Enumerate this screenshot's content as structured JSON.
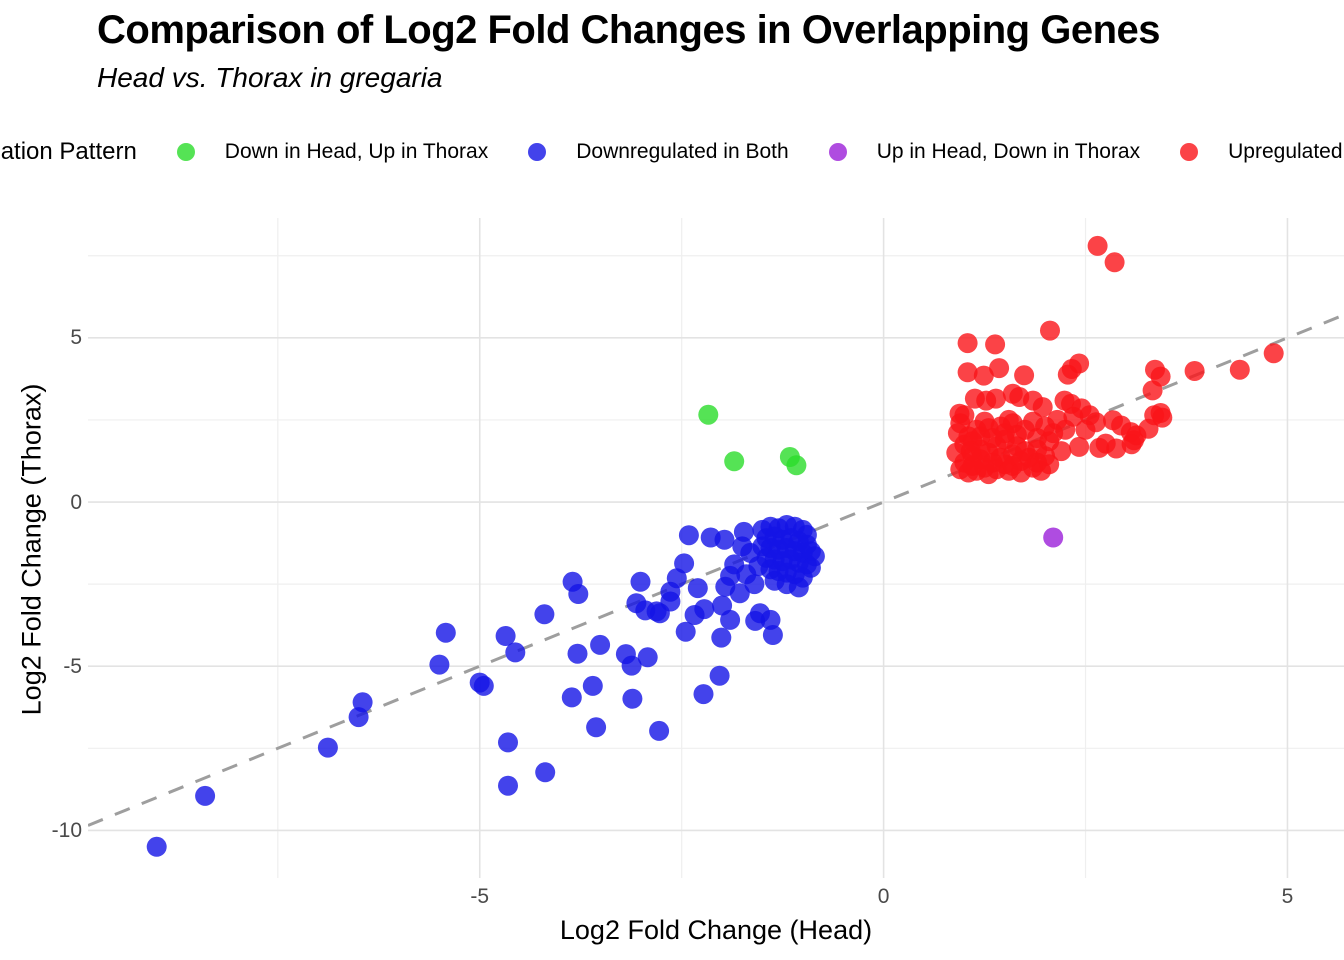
{
  "title": "Comparison of Log2 Fold Changes in Overlapping Genes",
  "subtitle": "Head vs. Thorax in gregaria",
  "legend": {
    "title": "Regulation Pattern",
    "items": [
      {
        "label": "Down in Head, Up in Thorax",
        "color": "#55E355"
      },
      {
        "label": "Downregulated in Both",
        "color": "#4343EB"
      },
      {
        "label": "Up in Head, Down in Thorax",
        "color": "#AF4CE0"
      },
      {
        "label": "Upregulated in Both",
        "color": "#FB4347"
      }
    ]
  },
  "chart_data": {
    "type": "scatter",
    "title": "Comparison of Log2 Fold Changes in Overlapping Genes",
    "subtitle": "Head vs. Thorax in gregaria",
    "xlabel": "Log2 Fold Change (Head)",
    "ylabel": "Log2 Fold Change (Thorax)",
    "xlim": [
      -9.85,
      5.7
    ],
    "ylim": [
      -11.45,
      8.65
    ],
    "x_ticks": [
      -5,
      0,
      5
    ],
    "y_ticks": [
      5,
      0,
      -5,
      -10
    ],
    "x_minor_ticks": [
      -7.5,
      -2.5,
      2.5
    ],
    "y_minor_ticks": [
      7.5,
      2.5,
      -2.5,
      -7.5
    ],
    "grid": true,
    "legend_position": "top",
    "identity_line": {
      "type": "y=x",
      "style": "dashed",
      "color": "#9E9E9E"
    },
    "point_radius": 10,
    "point_opacity": 0.8,
    "series": [
      {
        "name": "Down in Head, Up in Thorax",
        "color": "#2ADC2A",
        "points": [
          [
            -2.17,
            2.66
          ],
          [
            -1.85,
            1.24
          ],
          [
            -1.16,
            1.37
          ],
          [
            -1.08,
            1.12
          ]
        ]
      },
      {
        "name": "Downregulated in Both",
        "color": "#1414E6",
        "points": [
          [
            -9.0,
            -10.5
          ],
          [
            -8.4,
            -8.95
          ],
          [
            -6.88,
            -7.48
          ],
          [
            -6.5,
            -6.55
          ],
          [
            -6.45,
            -6.1
          ],
          [
            -5.5,
            -4.95
          ],
          [
            -5.42,
            -3.98
          ],
          [
            -5.0,
            -5.5
          ],
          [
            -4.95,
            -5.6
          ],
          [
            -4.68,
            -4.08
          ],
          [
            -4.56,
            -4.58
          ],
          [
            -4.65,
            -7.32
          ],
          [
            -4.65,
            -8.64
          ],
          [
            -4.19,
            -8.23
          ],
          [
            -4.2,
            -3.42
          ],
          [
            -3.85,
            -2.43
          ],
          [
            -3.78,
            -2.8
          ],
          [
            -3.79,
            -4.62
          ],
          [
            -3.6,
            -5.6
          ],
          [
            -3.86,
            -5.95
          ],
          [
            -3.56,
            -6.86
          ],
          [
            -2.78,
            -6.97
          ],
          [
            -3.51,
            -4.35
          ],
          [
            -3.19,
            -4.63
          ],
          [
            -3.12,
            -4.98
          ],
          [
            -2.92,
            -4.73
          ],
          [
            -3.11,
            -5.99
          ],
          [
            -2.03,
            -5.29
          ],
          [
            -2.23,
            -5.85
          ],
          [
            -2.01,
            -4.13
          ],
          [
            -3.01,
            -2.43
          ],
          [
            -3.06,
            -3.08
          ],
          [
            -2.95,
            -3.3
          ],
          [
            -2.77,
            -3.39
          ],
          [
            -2.64,
            -3.03
          ],
          [
            -2.81,
            -3.33
          ],
          [
            -2.45,
            -3.95
          ],
          [
            -2.34,
            -3.44
          ],
          [
            -2.22,
            -3.26
          ],
          [
            -1.9,
            -3.59
          ],
          [
            -1.59,
            -3.62
          ],
          [
            -1.4,
            -3.59
          ],
          [
            -1.37,
            -4.05
          ],
          [
            -2.41,
            -1.01
          ],
          [
            -2.14,
            -1.08
          ],
          [
            -1.97,
            -1.15
          ],
          [
            -1.73,
            -0.91
          ],
          [
            -2.47,
            -1.87
          ],
          [
            -2.64,
            -2.73
          ],
          [
            -2.56,
            -2.32
          ],
          [
            -2.3,
            -2.62
          ],
          [
            -1.96,
            -2.58
          ],
          [
            -1.78,
            -2.78
          ],
          [
            -2.0,
            -3.15
          ],
          [
            -1.53,
            -3.39
          ],
          [
            -1.5,
            -0.85
          ],
          [
            -1.4,
            -0.75
          ],
          [
            -1.3,
            -0.8
          ],
          [
            -1.2,
            -0.7
          ],
          [
            -1.1,
            -0.75
          ],
          [
            -1.0,
            -0.85
          ],
          [
            -0.95,
            -1.0
          ],
          [
            -1.45,
            -1.1
          ],
          [
            -1.35,
            -1.05
          ],
          [
            -1.25,
            -1.15
          ],
          [
            -1.15,
            -1.1
          ],
          [
            -1.05,
            -1.2
          ],
          [
            -0.95,
            -1.3
          ],
          [
            -1.5,
            -1.35
          ],
          [
            -1.4,
            -1.4
          ],
          [
            -1.3,
            -1.45
          ],
          [
            -1.2,
            -1.4
          ],
          [
            -1.1,
            -1.5
          ],
          [
            -1.0,
            -1.55
          ],
          [
            -0.9,
            -1.5
          ],
          [
            -1.45,
            -1.7
          ],
          [
            -1.35,
            -1.75
          ],
          [
            -1.25,
            -1.8
          ],
          [
            -1.15,
            -1.75
          ],
          [
            -1.05,
            -1.85
          ],
          [
            -0.95,
            -1.9
          ],
          [
            -0.9,
            -2.0
          ],
          [
            -1.4,
            -2.05
          ],
          [
            -1.3,
            -2.1
          ],
          [
            -1.2,
            -2.15
          ],
          [
            -1.1,
            -2.2
          ],
          [
            -1.0,
            -2.3
          ],
          [
            -1.35,
            -2.4
          ],
          [
            -1.2,
            -2.5
          ],
          [
            -1.05,
            -2.6
          ],
          [
            -0.85,
            -1.65
          ],
          [
            -1.55,
            -1.95
          ],
          [
            -1.65,
            -1.55
          ],
          [
            -1.7,
            -2.2
          ],
          [
            -1.85,
            -1.9
          ],
          [
            -1.75,
            -1.35
          ],
          [
            -1.6,
            -2.5
          ],
          [
            -1.9,
            -2.25
          ]
        ]
      },
      {
        "name": "Up in Head, Down in Thorax",
        "color": "#9B1FD9",
        "points": [
          [
            2.1,
            -1.08
          ]
        ]
      },
      {
        "name": "Upregulated in Both",
        "color": "#FA1419",
        "points": [
          [
            2.65,
            7.8
          ],
          [
            2.86,
            7.3
          ],
          [
            2.06,
            5.22
          ],
          [
            1.04,
            4.84
          ],
          [
            1.38,
            4.8
          ],
          [
            4.83,
            4.53
          ],
          [
            4.41,
            4.03
          ],
          [
            3.85,
            3.99
          ],
          [
            3.36,
            4.03
          ],
          [
            3.43,
            3.82
          ],
          [
            3.33,
            3.4
          ],
          [
            2.42,
            4.22
          ],
          [
            2.33,
            4.05
          ],
          [
            2.28,
            3.88
          ],
          [
            1.04,
            3.95
          ],
          [
            1.24,
            3.85
          ],
          [
            1.43,
            4.08
          ],
          [
            1.74,
            3.86
          ],
          [
            1.13,
            3.15
          ],
          [
            1.27,
            3.09
          ],
          [
            1.39,
            3.15
          ],
          [
            1.6,
            3.3
          ],
          [
            1.68,
            3.2
          ],
          [
            1.85,
            3.09
          ],
          [
            1.97,
            2.89
          ],
          [
            2.24,
            3.09
          ],
          [
            2.32,
            2.99
          ],
          [
            2.55,
            2.64
          ],
          [
            2.63,
            2.43
          ],
          [
            2.84,
            2.49
          ],
          [
            2.94,
            2.33
          ],
          [
            3.06,
            2.13
          ],
          [
            3.13,
            2.03
          ],
          [
            2.75,
            1.78
          ],
          [
            2.88,
            1.63
          ],
          [
            2.67,
            1.65
          ],
          [
            2.42,
            1.68
          ],
          [
            0.94,
            2.69
          ],
          [
            1.0,
            2.64
          ],
          [
            3.43,
            2.71
          ],
          [
            3.35,
            2.64
          ],
          [
            3.45,
            2.57
          ],
          [
            3.28,
            2.23
          ],
          [
            3.1,
            1.88
          ],
          [
            3.07,
            1.76
          ],
          [
            2.45,
            2.85
          ],
          [
            2.5,
            2.2
          ],
          [
            2.35,
            2.6
          ],
          [
            0.95,
            1.0
          ],
          [
            1.0,
            1.2
          ],
          [
            1.05,
            0.9
          ],
          [
            1.1,
            1.4
          ],
          [
            1.1,
            1.1
          ],
          [
            1.15,
            0.95
          ],
          [
            1.2,
            1.3
          ],
          [
            1.2,
            1.6
          ],
          [
            1.25,
            1.05
          ],
          [
            1.3,
            1.5
          ],
          [
            1.3,
            0.85
          ],
          [
            1.35,
            1.2
          ],
          [
            1.4,
            1.7
          ],
          [
            1.4,
            1.0
          ],
          [
            1.45,
            1.35
          ],
          [
            1.5,
            1.15
          ],
          [
            1.5,
            1.9
          ],
          [
            1.55,
            0.95
          ],
          [
            1.6,
            1.45
          ],
          [
            1.6,
            1.1
          ],
          [
            1.65,
            1.7
          ],
          [
            1.7,
            1.25
          ],
          [
            1.7,
            0.9
          ],
          [
            1.75,
            1.55
          ],
          [
            1.8,
            1.35
          ],
          [
            1.85,
            1.05
          ],
          [
            1.9,
            1.6
          ],
          [
            1.9,
            1.2
          ],
          [
            1.95,
            0.95
          ],
          [
            2.0,
            1.4
          ],
          [
            2.05,
            1.15
          ],
          [
            1.0,
            1.75
          ],
          [
            1.05,
            2.0
          ],
          [
            1.1,
            1.85
          ],
          [
            1.15,
            2.2
          ],
          [
            1.2,
            2.0
          ],
          [
            1.3,
            2.25
          ],
          [
            1.35,
            1.95
          ],
          [
            1.45,
            2.3
          ],
          [
            1.5,
            2.1
          ],
          [
            1.6,
            2.4
          ],
          [
            1.65,
            2.05
          ],
          [
            1.75,
            2.2
          ],
          [
            1.85,
            2.45
          ],
          [
            1.9,
            1.95
          ],
          [
            2.0,
            2.3
          ],
          [
            2.05,
            1.85
          ],
          [
            0.9,
            1.5
          ],
          [
            0.92,
            2.1
          ],
          [
            0.95,
            2.4
          ],
          [
            1.55,
            2.5
          ],
          [
            1.25,
            2.45
          ],
          [
            2.1,
            2.1
          ],
          [
            2.15,
            2.5
          ],
          [
            2.2,
            1.55
          ],
          [
            2.25,
            2.2
          ],
          [
            1.08,
            1.55
          ]
        ]
      }
    ]
  }
}
